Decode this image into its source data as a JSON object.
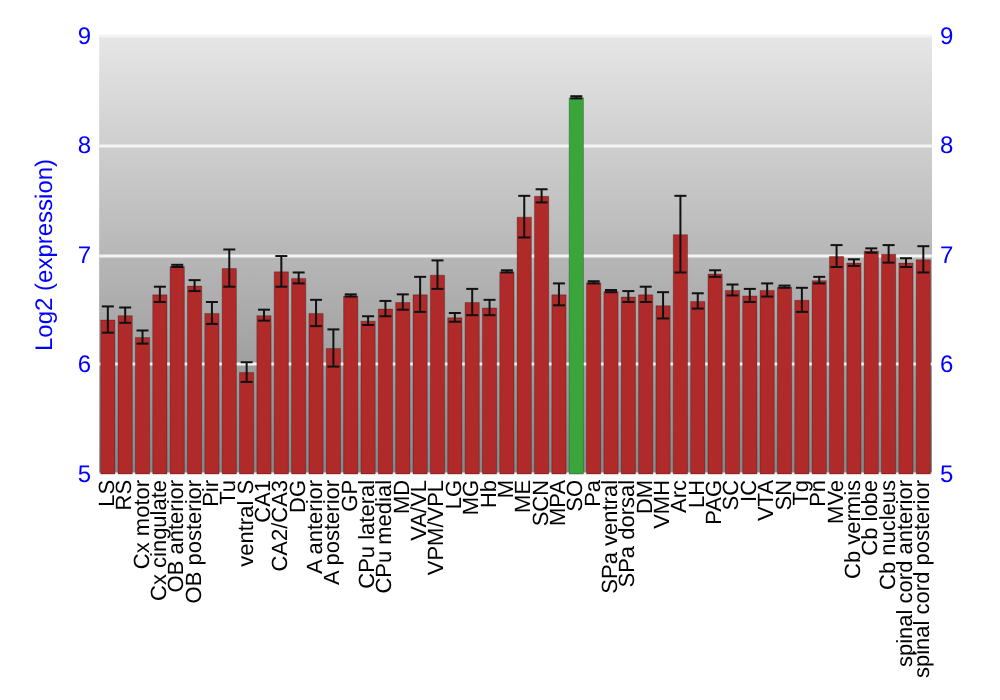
{
  "chart_data": {
    "type": "bar",
    "ylabel": "Log2 (expression)",
    "categories": [
      "LS",
      "RS",
      "Cx motor",
      "Cx cingulate",
      "OB anterior",
      "OB posterior",
      "Pir",
      "Tu",
      "ventral S",
      "CA1",
      "CA2/CA3",
      "DG",
      "A anterior",
      "A posterior",
      "GP",
      "CPu lateral",
      "CPu medial",
      "MD",
      "VA/VL",
      "VPM/VPL",
      "LG",
      "MG",
      "Hb",
      "M",
      "ME",
      "SCN",
      "MPA",
      "SO",
      "Pa",
      "SPa ventral",
      "SPa dorsal",
      "DM",
      "VMH",
      "Arc",
      "LH",
      "PAG",
      "SC",
      "IC",
      "VTA",
      "SN",
      "Tg",
      "Pn",
      "MVe",
      "Cb vermis",
      "Cb lobe",
      "Cb nucleus",
      "spinal cord anterior",
      "spinal cord posterior"
    ],
    "values": [
      6.41,
      6.45,
      6.25,
      6.64,
      6.9,
      6.72,
      6.47,
      6.88,
      5.93,
      6.45,
      6.85,
      6.79,
      6.47,
      6.15,
      6.63,
      6.4,
      6.51,
      6.57,
      6.64,
      6.82,
      6.43,
      6.57,
      6.52,
      6.85,
      7.35,
      7.54,
      6.64,
      8.44,
      6.75,
      6.67,
      6.62,
      6.64,
      6.54,
      7.19,
      6.58,
      6.83,
      6.68,
      6.63,
      6.68,
      6.71,
      6.59,
      6.77,
      6.99,
      6.93,
      7.04,
      7.01,
      6.93,
      6.96
    ],
    "errors": [
      0.12,
      0.07,
      0.06,
      0.07,
      0.01,
      0.05,
      0.1,
      0.17,
      0.09,
      0.05,
      0.14,
      0.05,
      0.12,
      0.17,
      0.01,
      0.04,
      0.07,
      0.07,
      0.16,
      0.13,
      0.04,
      0.12,
      0.07,
      0.01,
      0.19,
      0.06,
      0.1,
      0.01,
      0.01,
      0.01,
      0.05,
      0.07,
      0.12,
      0.35,
      0.07,
      0.03,
      0.05,
      0.06,
      0.06,
      0.01,
      0.11,
      0.03,
      0.1,
      0.03,
      0.02,
      0.08,
      0.04,
      0.12
    ],
    "colors": [
      "#b02a2a",
      "#b02a2a",
      "#b02a2a",
      "#b02a2a",
      "#b02a2a",
      "#b02a2a",
      "#b02a2a",
      "#b02a2a",
      "#b02a2a",
      "#b02a2a",
      "#b02a2a",
      "#b02a2a",
      "#b02a2a",
      "#b02a2a",
      "#b02a2a",
      "#b02a2a",
      "#b02a2a",
      "#b02a2a",
      "#b02a2a",
      "#b02a2a",
      "#b02a2a",
      "#b02a2a",
      "#b02a2a",
      "#b02a2a",
      "#b02a2a",
      "#b02a2a",
      "#b02a2a",
      "#3aa63a",
      "#b02a2a",
      "#b02a2a",
      "#b02a2a",
      "#b02a2a",
      "#b02a2a",
      "#b02a2a",
      "#b02a2a",
      "#b02a2a",
      "#b02a2a",
      "#b02a2a",
      "#b02a2a",
      "#b02a2a",
      "#b02a2a",
      "#b02a2a",
      "#b02a2a",
      "#b02a2a",
      "#b02a2a",
      "#b02a2a",
      "#b02a2a",
      "#b02a2a"
    ],
    "ylim": [
      5,
      9
    ],
    "yticks": [
      5,
      6,
      7,
      8,
      9
    ],
    "y2lim": [
      5,
      9
    ],
    "y2ticks": [
      5,
      6,
      7,
      8,
      9
    ],
    "grid": "y"
  }
}
